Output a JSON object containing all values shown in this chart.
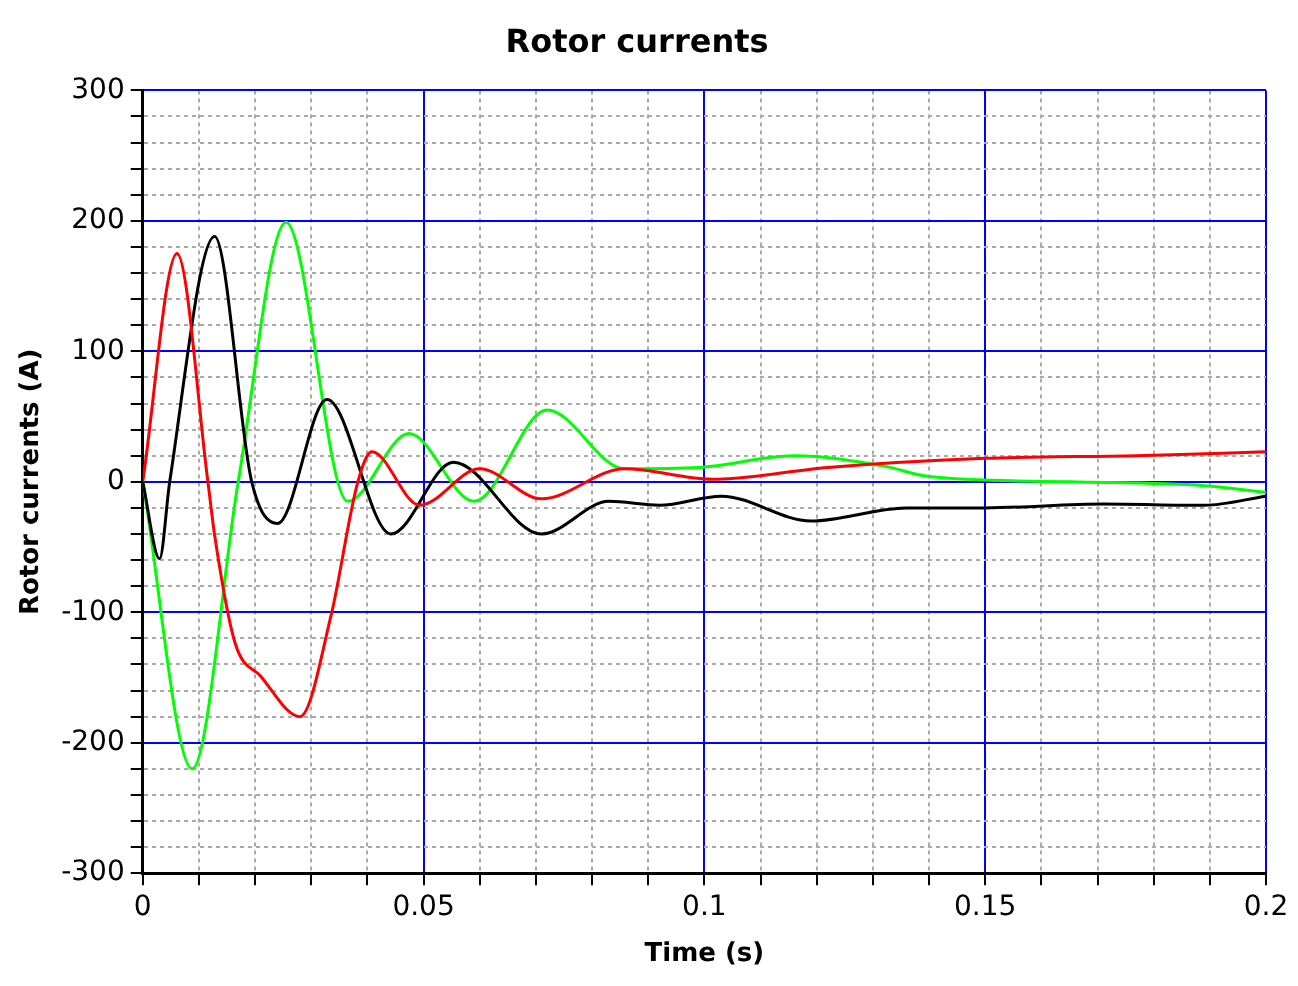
{
  "chart_data": {
    "type": "line",
    "title": "Rotor currents",
    "xlabel": "Time (s)",
    "ylabel": "Rotor currents (A)",
    "xlim": [
      0,
      0.2
    ],
    "ylim": [
      -300,
      300
    ],
    "xticks": [
      0,
      {
        "value": 0.01,
        "label": null
      },
      {
        "value": 0.02,
        "label": null
      },
      {
        "value": 0.03,
        "label": null
      },
      {
        "value": 0.04,
        "label": null
      },
      0.05,
      {
        "value": 0.06,
        "label": null
      },
      {
        "value": 0.07,
        "label": null
      },
      {
        "value": 0.08,
        "label": null
      },
      {
        "value": 0.09,
        "label": null
      },
      0.1,
      {
        "value": 0.11,
        "label": null
      },
      {
        "value": 0.12,
        "label": null
      },
      {
        "value": 0.13,
        "label": null
      },
      {
        "value": 0.14,
        "label": null
      },
      0.15,
      {
        "value": 0.16,
        "label": null
      },
      {
        "value": 0.17,
        "label": null
      },
      {
        "value": 0.18,
        "label": null
      },
      {
        "value": 0.19,
        "label": null
      },
      0.2
    ],
    "yticks": [
      -300,
      {
        "value": -280,
        "label": null
      },
      {
        "value": -260,
        "label": null
      },
      {
        "value": -240,
        "label": null
      },
      {
        "value": -220,
        "label": null
      },
      -200,
      {
        "value": -180,
        "label": null
      },
      {
        "value": -160,
        "label": null
      },
      {
        "value": -140,
        "label": null
      },
      {
        "value": -120,
        "label": null
      },
      -100,
      {
        "value": -80,
        "label": null
      },
      {
        "value": -60,
        "label": null
      },
      {
        "value": -40,
        "label": null
      },
      {
        "value": -20,
        "label": null
      },
      0,
      {
        "value": 20,
        "label": null
      },
      {
        "value": 40,
        "label": null
      },
      {
        "value": 60,
        "label": null
      },
      {
        "value": 80,
        "label": null
      },
      100,
      {
        "value": 120,
        "label": null
      },
      {
        "value": 140,
        "label": null
      },
      {
        "value": 160,
        "label": null
      },
      {
        "value": 180,
        "label": null
      },
      200,
      {
        "value": 220,
        "label": null
      },
      {
        "value": 240,
        "label": null
      },
      {
        "value": 260,
        "label": null
      },
      {
        "value": 280,
        "label": null
      },
      300
    ],
    "grid": true,
    "legend": false,
    "marker": "none",
    "line_style": "solid",
    "series": [
      {
        "color": "#ff0000",
        "x": [
          0,
          0.0061,
          0.0116,
          0.0128,
          0.0164,
          0.021,
          0.028,
          0.0335,
          0.0383,
          0.0408,
          0.0493,
          0.06,
          0.071,
          0.0858,
          0.1015,
          0.122,
          0.15,
          0.177,
          0.2
        ],
        "values": [
          0,
          175,
          0,
          -41,
          -123,
          -149,
          -180,
          -103,
          0,
          23,
          -18,
          10,
          -13,
          10,
          2,
          11,
          18,
          20,
          23
        ]
      },
      {
        "color": "#000000",
        "x": [
          0,
          0.003,
          0.0048,
          0.0128,
          0.0194,
          0.024,
          0.0328,
          0.0442,
          0.0553,
          0.071,
          0.083,
          0.092,
          0.103,
          0.119,
          0.136,
          0.15,
          0.171,
          0.189,
          0.2
        ],
        "values": [
          0,
          -59,
          0,
          188,
          0,
          -32,
          63,
          -40,
          15,
          -40,
          -15,
          -18,
          -11,
          -30,
          -20,
          -20,
          -17,
          -18,
          -11
        ]
      },
      {
        "color": "#00ff00",
        "x": [
          0,
          0.0088,
          0.017,
          0.0255,
          0.0365,
          0.0474,
          0.059,
          0.072,
          0.0858,
          0.099,
          0.116,
          0.132,
          0.14,
          0.165,
          0.189,
          0.2
        ],
        "values": [
          0,
          -220,
          0,
          199,
          -15,
          37,
          -15,
          55,
          10,
          11,
          20,
          12,
          4,
          0,
          -3,
          -8
        ]
      }
    ]
  }
}
